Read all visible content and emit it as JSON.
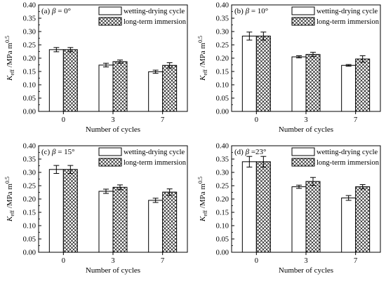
{
  "chart_data": [
    {
      "type": "bar",
      "panel_label": "(a) β = 0°",
      "categories": [
        "0",
        "3",
        "7"
      ],
      "xlabel": "Number of cycles",
      "ylabel": "K_eff /MPa m^0.5",
      "ylim": [
        0,
        0.4
      ],
      "yticks": [
        "0.00",
        "0.05",
        "0.10",
        "0.15",
        "0.20",
        "0.25",
        "0.30",
        "0.35",
        "0.40"
      ],
      "legend_position": "top-right",
      "series": [
        {
          "name": "wetting-drying cycle",
          "values": [
            0.232,
            0.174,
            0.149
          ],
          "errors": [
            0.008,
            0.007,
            0.006
          ]
        },
        {
          "name": "long-term immersion",
          "values": [
            0.232,
            0.187,
            0.173
          ],
          "errors": [
            0.008,
            0.006,
            0.01
          ]
        }
      ]
    },
    {
      "type": "bar",
      "panel_label": "(b) β = 10°",
      "categories": [
        "0",
        "3",
        "7"
      ],
      "xlabel": "Number of cycles",
      "ylabel": "K_eff /MPa m^0.5",
      "ylim": [
        0,
        0.4
      ],
      "yticks": [
        "0.00",
        "0.05",
        "0.10",
        "0.15",
        "0.20",
        "0.25",
        "0.30",
        "0.35",
        "0.40"
      ],
      "legend_position": "top-right",
      "series": [
        {
          "name": "wetting-drying cycle",
          "values": [
            0.283,
            0.205,
            0.173
          ],
          "errors": [
            0.015,
            0.004,
            0.003
          ]
        },
        {
          "name": "long-term immersion",
          "values": [
            0.283,
            0.214,
            0.197
          ],
          "errors": [
            0.015,
            0.008,
            0.012
          ]
        }
      ]
    },
    {
      "type": "bar",
      "panel_label": "(c) β = 15°",
      "categories": [
        "0",
        "3",
        "7"
      ],
      "xlabel": "Number of cycles",
      "ylabel": "K_eff /MPa m^0.5",
      "ylim": [
        0,
        0.4
      ],
      "yticks": [
        "0.00",
        "0.05",
        "0.10",
        "0.15",
        "0.20",
        "0.25",
        "0.30",
        "0.35",
        "0.40"
      ],
      "legend_position": "top-right",
      "series": [
        {
          "name": "wetting-drying cycle",
          "values": [
            0.311,
            0.229,
            0.195
          ],
          "errors": [
            0.015,
            0.008,
            0.008
          ]
        },
        {
          "name": "long-term immersion",
          "values": [
            0.311,
            0.244,
            0.226
          ],
          "errors": [
            0.015,
            0.009,
            0.012
          ]
        }
      ]
    },
    {
      "type": "bar",
      "panel_label": "(d) β =23°",
      "categories": [
        "0",
        "3",
        "7"
      ],
      "xlabel": "Number of cycles",
      "ylabel": "K_eff /MPa m^0.5",
      "ylim": [
        0,
        0.4
      ],
      "yticks": [
        "0.00",
        "0.05",
        "0.10",
        "0.15",
        "0.20",
        "0.25",
        "0.30",
        "0.35",
        "0.40"
      ],
      "legend_position": "top-right",
      "series": [
        {
          "name": "wetting-drying cycle",
          "values": [
            0.34,
            0.246,
            0.204
          ],
          "errors": [
            0.02,
            0.006,
            0.009
          ]
        },
        {
          "name": "long-term immersion",
          "values": [
            0.34,
            0.266,
            0.246
          ],
          "errors": [
            0.02,
            0.015,
            0.008
          ]
        }
      ]
    }
  ]
}
